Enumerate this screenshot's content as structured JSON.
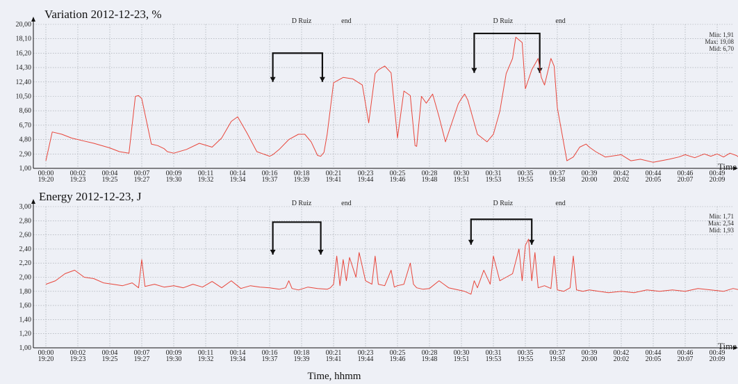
{
  "chart_data": [
    {
      "type": "line",
      "title": "Variation 2012-12-23, %",
      "x_axis_label": "Time",
      "x_tick_labels": [
        [
          "00:00",
          "19:20"
        ],
        [
          "00:02",
          "19:23"
        ],
        [
          "00:04",
          "19:25"
        ],
        [
          "00:07",
          "19:27"
        ],
        [
          "00:09",
          "19:30"
        ],
        [
          "00:11",
          "19:32"
        ],
        [
          "00:14",
          "19:34"
        ],
        [
          "00:16",
          "19:37"
        ],
        [
          "00:18",
          "19:39"
        ],
        [
          "00:21",
          "19:41"
        ],
        [
          "00:23",
          "19:44"
        ],
        [
          "00:25",
          "19:46"
        ],
        [
          "00:28",
          "19:48"
        ],
        [
          "00:30",
          "19:51"
        ],
        [
          "00:31",
          "19:53"
        ],
        [
          "00:35",
          "19:55"
        ],
        [
          "00:37",
          "19:58"
        ],
        [
          "00:39",
          "20:00"
        ],
        [
          "00:42",
          "20:02"
        ],
        [
          "00:44",
          "20:05"
        ],
        [
          "00:46",
          "20:07"
        ],
        [
          "00:49",
          "20:09"
        ]
      ],
      "y_ticks": [
        "1,00",
        "2,90",
        "4,80",
        "6,70",
        "8,60",
        "10,50",
        "12,40",
        "14,30",
        "16,20",
        "18,10",
        "20,00"
      ],
      "ylim": [
        1.0,
        20.0
      ],
      "series_color": "#e8453a",
      "stats": {
        "min": "Min: 1,91",
        "max": "Max: 19,08",
        "mid": "Mid: 6,70"
      },
      "annotations": [
        {
          "label": "D Ruiz",
          "x": 8.0
        },
        {
          "label": "end",
          "x": 9.4
        },
        {
          "label": "D Ruiz",
          "x": 14.3
        },
        {
          "label": "end",
          "x": 16.1
        }
      ],
      "brackets": [
        {
          "x_start": 7.1,
          "x_end": 8.65,
          "top": 16.2,
          "bottom": 12.4
        },
        {
          "x_start": 13.4,
          "x_end": 15.45,
          "top": 18.8,
          "bottom": 13.6
        }
      ],
      "x": [
        0,
        0.2,
        0.5,
        0.8,
        1.2,
        1.5,
        2.0,
        2.3,
        2.6,
        2.8,
        2.9,
        3.0,
        3.3,
        3.5,
        3.7,
        3.8,
        4.0,
        4.4,
        4.8,
        5.2,
        5.5,
        5.8,
        6.0,
        6.3,
        6.6,
        6.8,
        7.0,
        7.1,
        7.3,
        7.6,
        7.9,
        8.1,
        8.3,
        8.5,
        8.6,
        8.7,
        8.8,
        9.0,
        9.3,
        9.6,
        9.9,
        10.1,
        10.3,
        10.4,
        10.6,
        10.8,
        11.0,
        11.2,
        11.4,
        11.55,
        11.6,
        11.75,
        11.9,
        12.1,
        12.3,
        12.5,
        12.7,
        12.9,
        13.0,
        13.1,
        13.2,
        13.5,
        13.8,
        14.0,
        14.2,
        14.4,
        14.6,
        14.7,
        14.9,
        15.0,
        15.2,
        15.4,
        15.5,
        15.6,
        15.8,
        15.9,
        16.0,
        16.3,
        16.5,
        16.7,
        16.9,
        17.0,
        17.2,
        17.5,
        18.0,
        18.3,
        18.6,
        19.0,
        19.5,
        19.8,
        20.0,
        20.3,
        20.6,
        20.8,
        21.0,
        21.2,
        21.4,
        21.6,
        21.7
      ],
      "values": [
        2.0,
        5.8,
        5.5,
        5.0,
        4.6,
        4.3,
        3.7,
        3.2,
        3.0,
        10.5,
        10.6,
        10.2,
        4.2,
        4.0,
        3.6,
        3.2,
        3.0,
        3.5,
        4.3,
        3.8,
        5.0,
        7.2,
        7.8,
        5.6,
        3.2,
        2.9,
        2.6,
        2.8,
        3.5,
        4.8,
        5.5,
        5.5,
        4.5,
        2.7,
        2.6,
        3.1,
        5.5,
        12.3,
        13.0,
        12.8,
        12.0,
        7.0,
        13.5,
        14.0,
        14.5,
        13.6,
        5.0,
        11.2,
        10.6,
        4.0,
        3.9,
        10.5,
        9.6,
        10.8,
        7.8,
        4.5,
        7.0,
        9.5,
        10.2,
        10.8,
        10.0,
        5.5,
        4.5,
        5.5,
        8.5,
        13.5,
        15.5,
        18.3,
        17.6,
        11.5,
        14.0,
        15.5,
        13.0,
        12.0,
        15.5,
        14.5,
        9.0,
        2.0,
        2.5,
        3.8,
        4.2,
        3.8,
        3.2,
        2.5,
        2.8,
        2.0,
        2.2,
        1.8,
        2.2,
        2.5,
        2.8,
        2.4,
        2.9,
        2.6,
        2.9,
        2.5,
        3.0,
        2.7,
        2.4
      ]
    },
    {
      "type": "line",
      "title": "Energy 2012-12-23, J",
      "x_axis_label": "Time",
      "x_tick_labels": [
        [
          "00:00",
          "19:20"
        ],
        [
          "00:02",
          "19:23"
        ],
        [
          "00:04",
          "19:25"
        ],
        [
          "00:07",
          "19:27"
        ],
        [
          "00:09",
          "19:30"
        ],
        [
          "00:11",
          "19:32"
        ],
        [
          "00:14",
          "19:34"
        ],
        [
          "00:16",
          "19:37"
        ],
        [
          "00:18",
          "19:39"
        ],
        [
          "00:21",
          "19:41"
        ],
        [
          "00:23",
          "19:44"
        ],
        [
          "00:25",
          "19:46"
        ],
        [
          "00:28",
          "19:48"
        ],
        [
          "00:30",
          "19:51"
        ],
        [
          "00:31",
          "19:53"
        ],
        [
          "00:35",
          "19:55"
        ],
        [
          "00:37",
          "19:58"
        ],
        [
          "00:39",
          "20:00"
        ],
        [
          "00:42",
          "20:02"
        ],
        [
          "00:44",
          "20:05"
        ],
        [
          "00:46",
          "20:07"
        ],
        [
          "00:49",
          "20:09"
        ]
      ],
      "y_ticks": [
        "1,00",
        "1,20",
        "1,40",
        "1,60",
        "1,80",
        "2,00",
        "2,20",
        "2,40",
        "2,60",
        "2,80",
        "3,00"
      ],
      "ylim": [
        1.0,
        3.0
      ],
      "series_color": "#e8453a",
      "stats": {
        "min": "Min: 1,71",
        "max": "Max: 2,54",
        "mid": "Mid: 1,93"
      },
      "annotations": [
        {
          "label": "D Ruiz",
          "x": 8.0
        },
        {
          "label": "end",
          "x": 9.4
        },
        {
          "label": "D Ruiz",
          "x": 14.3
        },
        {
          "label": "end",
          "x": 16.1
        }
      ],
      "brackets": [
        {
          "x_start": 7.1,
          "x_end": 8.6,
          "top": 2.78,
          "bottom": 2.32
        },
        {
          "x_start": 13.3,
          "x_end": 15.2,
          "top": 2.82,
          "bottom": 2.46
        }
      ],
      "x": [
        0,
        0.3,
        0.6,
        0.9,
        1.2,
        1.5,
        1.8,
        2.1,
        2.4,
        2.7,
        2.9,
        3.0,
        3.1,
        3.4,
        3.7,
        4.0,
        4.3,
        4.6,
        4.9,
        5.2,
        5.5,
        5.8,
        6.1,
        6.4,
        6.7,
        7.0,
        7.3,
        7.5,
        7.6,
        7.7,
        7.9,
        8.2,
        8.5,
        8.8,
        8.9,
        9.0,
        9.1,
        9.2,
        9.3,
        9.4,
        9.5,
        9.7,
        9.8,
        10.0,
        10.2,
        10.3,
        10.4,
        10.6,
        10.8,
        10.9,
        11.0,
        11.2,
        11.4,
        11.5,
        11.6,
        11.8,
        12.0,
        12.3,
        12.6,
        12.9,
        13.1,
        13.3,
        13.4,
        13.5,
        13.7,
        13.9,
        14.0,
        14.2,
        14.4,
        14.6,
        14.8,
        14.9,
        15.0,
        15.1,
        15.2,
        15.3,
        15.4,
        15.6,
        15.8,
        15.9,
        16.0,
        16.2,
        16.4,
        16.5,
        16.6,
        16.8,
        17.0,
        17.3,
        17.6,
        18.0,
        18.4,
        18.8,
        19.2,
        19.6,
        20.0,
        20.4,
        20.8,
        21.2,
        21.5,
        21.7
      ],
      "values": [
        1.9,
        1.95,
        2.05,
        2.1,
        2.0,
        1.98,
        1.92,
        1.9,
        1.88,
        1.92,
        1.85,
        2.25,
        1.87,
        1.9,
        1.86,
        1.88,
        1.85,
        1.9,
        1.86,
        1.94,
        1.85,
        1.95,
        1.84,
        1.88,
        1.86,
        1.85,
        1.83,
        1.85,
        1.95,
        1.84,
        1.82,
        1.86,
        1.84,
        1.83,
        1.85,
        1.9,
        2.3,
        1.88,
        2.25,
        1.95,
        2.28,
        2.0,
        2.35,
        1.95,
        1.9,
        2.3,
        1.9,
        1.88,
        2.1,
        1.86,
        1.88,
        1.9,
        2.2,
        1.9,
        1.85,
        1.83,
        1.84,
        1.95,
        1.85,
        1.82,
        1.8,
        1.76,
        1.95,
        1.85,
        2.1,
        1.9,
        2.3,
        1.95,
        2.0,
        2.05,
        2.4,
        1.95,
        2.45,
        2.54,
        1.95,
        2.35,
        1.85,
        1.88,
        1.84,
        2.3,
        1.82,
        1.8,
        1.85,
        2.3,
        1.82,
        1.8,
        1.82,
        1.8,
        1.78,
        1.8,
        1.78,
        1.82,
        1.8,
        1.82,
        1.8,
        1.84,
        1.82,
        1.8,
        1.84,
        1.82
      ]
    }
  ],
  "xlabel": "Time, hhmm"
}
